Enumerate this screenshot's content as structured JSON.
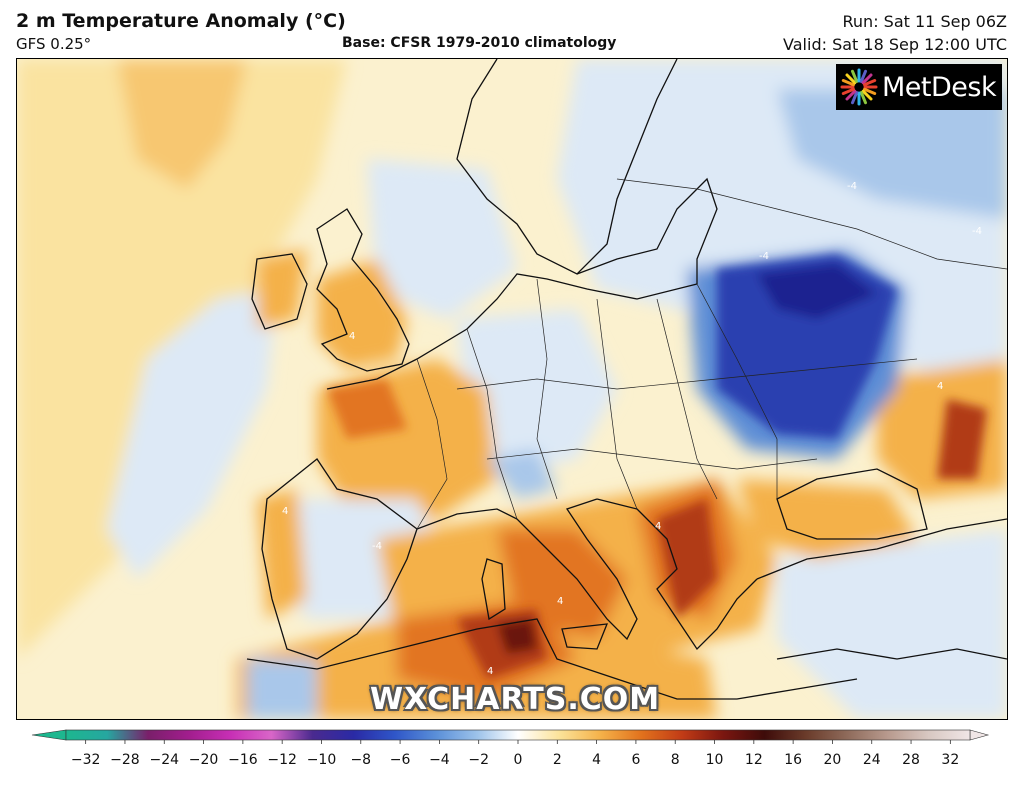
{
  "header": {
    "title": "2 m Temperature Anomaly (°C)",
    "model": "GFS 0.25°",
    "base": "Base: CFSR 1979-2010 climatology",
    "run": "Run: Sat 11 Sep 06Z",
    "valid": "Valid: Sat 18 Sep 12:00 UTC"
  },
  "logo": {
    "text": "MetDesk"
  },
  "watermark": "WXCHARTS.COM",
  "colorbar": {
    "ticks": [
      "−32",
      "−28",
      "−24",
      "−20",
      "−16",
      "−12",
      "−10",
      "−8",
      "−6",
      "−4",
      "−2",
      "0",
      "2",
      "4",
      "6",
      "8",
      "10",
      "12",
      "16",
      "20",
      "24",
      "28",
      "32"
    ],
    "colors": [
      "#1db78f",
      "#26a7a0",
      "#7a1f6a",
      "#a21e8e",
      "#c72fb5",
      "#d966c8",
      "#4a2a8f",
      "#2a2aa5",
      "#2f56c8",
      "#5a8fd8",
      "#9cc2ea",
      "#ffffff",
      "#fbe39a",
      "#f5b24a",
      "#e2721d",
      "#c13b16",
      "#7a1610",
      "#3e0c0a",
      "#6a3b2a",
      "#8e6a5a",
      "#b89a8e",
      "#d8c8c2",
      "#f0e6e6"
    ],
    "field_colors": {
      "neutral": "#fbf1cf",
      "warm_light": "#fae3a0",
      "warm": "#f4b14a",
      "hot": "#e27420",
      "very_hot": "#b13a18",
      "extreme": "#6a1810",
      "cool_light": "#dde9f6",
      "cool": "#a9c7ea",
      "cold": "#5f8fd6",
      "very_cold": "#2a3fb0",
      "extreme_cold": "#1a2490"
    }
  },
  "contours": {
    "labels": [
      "4",
      "-4",
      "4",
      "-4",
      "4",
      "4",
      "-4",
      "4",
      "-4",
      "4"
    ]
  }
}
